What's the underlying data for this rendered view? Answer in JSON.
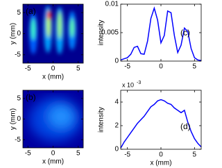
{
  "chart_data": [
    {
      "type": "image",
      "label": "(a)",
      "xlabel": "x (mm)",
      "ylabel": "y (mm)",
      "xlim": [
        -6,
        6
      ],
      "ylim": [
        -7,
        7
      ],
      "xticks": [
        -5,
        0,
        5
      ],
      "yticks": [
        -5,
        0,
        5
      ]
    },
    {
      "type": "line",
      "label": "(c)",
      "ylabel": "intensity",
      "xlim": [
        -6,
        6
      ],
      "ylim": [
        0,
        0.01
      ],
      "xticks": [
        -5,
        0,
        5
      ],
      "yticks": [
        0,
        0.005,
        0.01
      ],
      "color": "#0000ff",
      "x": [
        -6,
        -5.5,
        -5,
        -4.5,
        -4,
        -3.5,
        -3,
        -2.5,
        -2,
        -1.5,
        -1,
        -0.5,
        0,
        0.5,
        1,
        1.5,
        2,
        2.5,
        3,
        3.5,
        4,
        4.5,
        5,
        5.5,
        6
      ],
      "values": [
        0.0002,
        0.0004,
        0.0006,
        0.0012,
        0.0024,
        0.0026,
        0.0013,
        0.0012,
        0.0035,
        0.0075,
        0.0093,
        0.0072,
        0.0032,
        0.0045,
        0.0088,
        0.0085,
        0.0045,
        0.0015,
        0.0028,
        0.0058,
        0.0052,
        0.0022,
        0.0006,
        0.0002,
        0.0001
      ]
    },
    {
      "type": "image",
      "label": "(b)",
      "xlabel": "x (mm)",
      "ylabel": "y (mm)",
      "xlim": [
        -6,
        6
      ],
      "ylim": [
        -7,
        7
      ],
      "xticks": [
        -5,
        0,
        5
      ],
      "yticks": [
        -5,
        0,
        5
      ]
    },
    {
      "type": "line",
      "label": "(d)",
      "xlabel": "x (mm)",
      "ylabel": "intensity",
      "multiplier": {
        "base": "x 10",
        "exponent": "-3"
      },
      "xlim": [
        -6,
        6
      ],
      "ylim": [
        0,
        5
      ],
      "xticks": [
        -5,
        0,
        5
      ],
      "yticks": [
        0,
        2,
        4
      ],
      "color": "#0000ff",
      "x": [
        -6,
        -5.5,
        -5,
        -4.5,
        -4,
        -3.5,
        -3,
        -2.5,
        -2,
        -1.5,
        -1,
        -0.5,
        0,
        0.5,
        1,
        1.5,
        2,
        2.5,
        3,
        3.5,
        4,
        4.5,
        5,
        5.5,
        6
      ],
      "values": [
        0.1,
        0.6,
        1.0,
        1.4,
        1.8,
        2.2,
        2.5,
        2.8,
        3.2,
        3.6,
        3.8,
        4.1,
        4.2,
        4.1,
        3.9,
        3.8,
        3.5,
        3.3,
        3.1,
        3.3,
        2.3,
        1.5,
        0.9,
        0.5,
        0.2
      ]
    }
  ]
}
